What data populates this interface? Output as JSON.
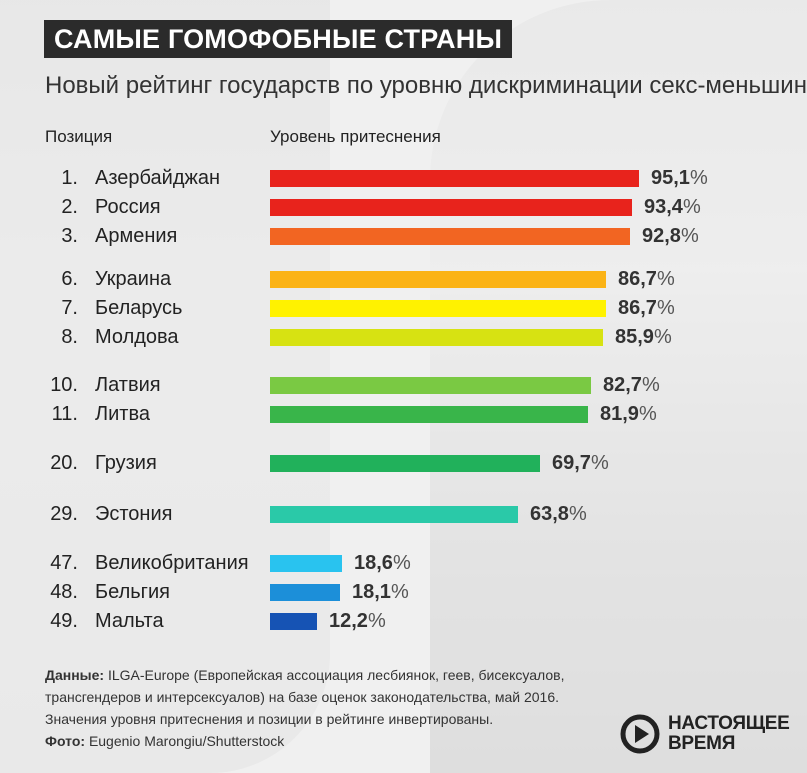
{
  "header": {
    "title": "САМЫЕ ГОМОФОБНЫЕ СТРАНЫ",
    "subtitle": "Новый рейтинг государств по уровню дискриминации секс-меньшинств"
  },
  "columns": {
    "position": "Позиция",
    "level": "Уровень притеснения"
  },
  "percent_sign": "%",
  "chart_data": {
    "type": "bar",
    "orientation": "horizontal",
    "xlim": [
      0,
      100
    ],
    "unit": "%",
    "grid": false,
    "rows": [
      {
        "rank": "1.",
        "country": "Азербайджан",
        "value": 95.1,
        "label": "95,1",
        "color": "#e8231c"
      },
      {
        "rank": "2.",
        "country": "Россия",
        "value": 93.4,
        "label": "93,4",
        "color": "#e8231c"
      },
      {
        "rank": "3.",
        "country": "Армения",
        "value": 92.8,
        "label": "92,8",
        "color": "#f26522"
      },
      {
        "rank": "6.",
        "country": "Украина",
        "value": 86.7,
        "label": "86,7",
        "color": "#fbb316"
      },
      {
        "rank": "7.",
        "country": "Беларусь",
        "value": 86.7,
        "label": "86,7",
        "color": "#fff200"
      },
      {
        "rank": "8.",
        "country": "Молдова",
        "value": 85.9,
        "label": "85,9",
        "color": "#d7e212"
      },
      {
        "rank": "10.",
        "country": "Латвия",
        "value": 82.7,
        "label": "82,7",
        "color": "#7ac943"
      },
      {
        "rank": "11.",
        "country": "Литва",
        "value": 81.9,
        "label": "81,9",
        "color": "#39b54a"
      },
      {
        "rank": "20.",
        "country": "Грузия",
        "value": 69.7,
        "label": "69,7",
        "color": "#21b15b"
      },
      {
        "rank": "29.",
        "country": "Эстония",
        "value": 63.8,
        "label": "63,8",
        "color": "#2ac9a8"
      },
      {
        "rank": "47.",
        "country": "Великобритания",
        "value": 18.6,
        "label": "18,6",
        "color": "#29c3ef"
      },
      {
        "rank": "48.",
        "country": "Бельгия",
        "value": 18.1,
        "label": "18,1",
        "color": "#1c8fd9"
      },
      {
        "rank": "49.",
        "country": "Мальта",
        "value": 12.2,
        "label": "12,2",
        "color": "#1653b4"
      }
    ]
  },
  "footer": {
    "data_label": "Данные:",
    "data_text": "ILGA-Europe (Европейская ассоциация лесбиянок, геев, бисексуалов, трансгендеров и интерсексуалов) на базе оценок законодательства, май 2016.",
    "note": "Значения уровня притеснения и позиции в рейтинге инвертированы.",
    "photo_label": "Фото:",
    "photo_text": "Eugenio Marongiu/Shutterstock"
  },
  "logo": {
    "line1": "НАСТОЯЩЕЕ",
    "line2": "ВРЕМЯ",
    "icon": "play-circle-icon",
    "color": "#222222"
  }
}
